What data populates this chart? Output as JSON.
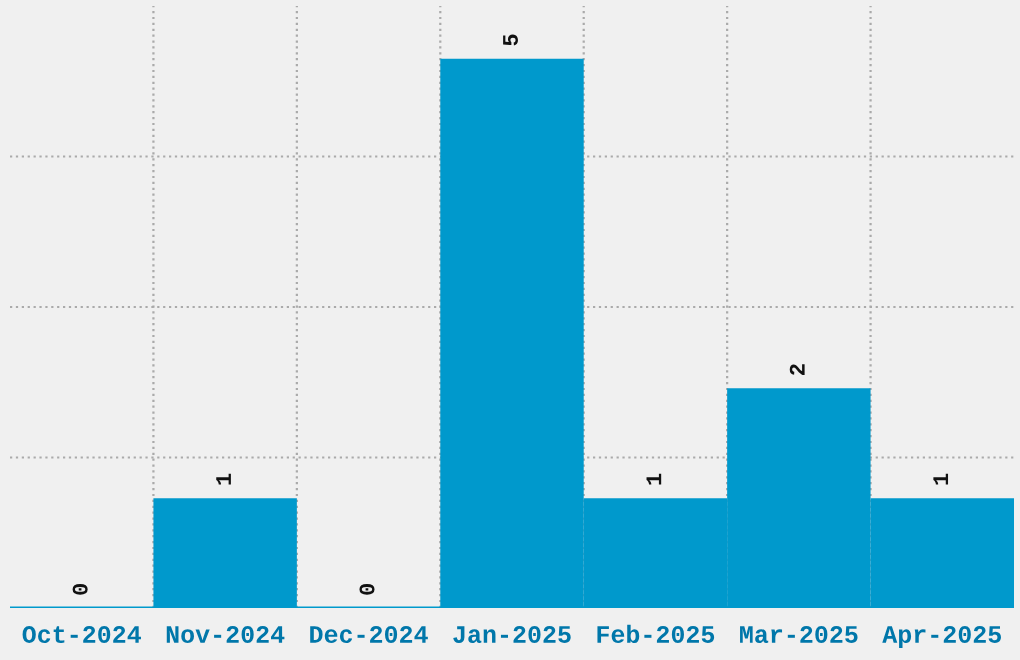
{
  "chart_data": {
    "type": "bar",
    "categories": [
      "Oct-2024",
      "Nov-2024",
      "Dec-2024",
      "Jan-2025",
      "Feb-2025",
      "Mar-2025",
      "Apr-2025"
    ],
    "values": [
      0,
      1,
      0,
      5,
      1,
      2,
      1
    ],
    "color": "#0099cc",
    "ylim": [
      0,
      5.48
    ],
    "yticks": [
      {
        "value": 1.37,
        "label": null
      },
      {
        "value": 2.74,
        "label": null
      },
      {
        "value": 4.11,
        "label": null
      }
    ],
    "tick_labels": "x",
    "grid": true,
    "data_labels": true
  }
}
